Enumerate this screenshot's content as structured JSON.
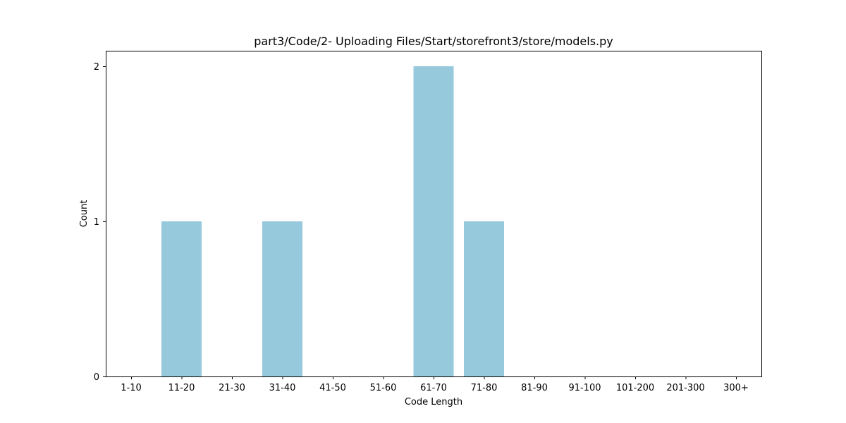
{
  "chart_data": {
    "type": "bar",
    "title": "part3/Code/2- Uploading Files/Start/storefront3/store/models.py",
    "xlabel": "Code Length",
    "ylabel": "Count",
    "categories": [
      "1-10",
      "11-20",
      "21-30",
      "31-40",
      "41-50",
      "51-60",
      "61-70",
      "71-80",
      "81-90",
      "91-100",
      "101-200",
      "201-300",
      "300+"
    ],
    "values": [
      0,
      1,
      0,
      1,
      0,
      0,
      2,
      1,
      0,
      0,
      0,
      0,
      0
    ],
    "yticks": [
      0,
      1,
      2
    ],
    "ylim": [
      0,
      2.1
    ],
    "grid": false,
    "bar_color": "#96c9dc"
  }
}
